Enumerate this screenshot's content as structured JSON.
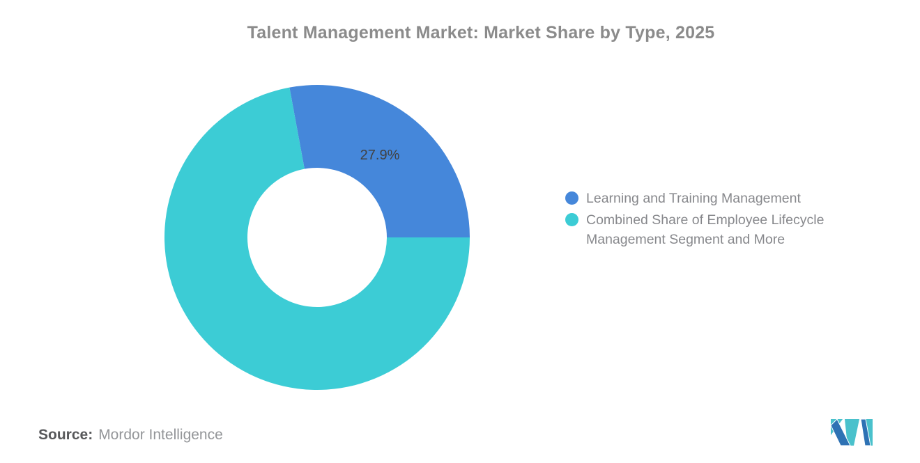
{
  "title": "Talent Management Market: Market Share by Type, 2025",
  "chart_data": {
    "type": "pie",
    "subtype": "donut",
    "title": "Talent Management Market: Market Share by Type, 2025",
    "labels": [
      "Learning and Training Management",
      "Combined Share of Employee Lifecycle Management Segment and More"
    ],
    "values": [
      27.9,
      72.1
    ],
    "colors": [
      "#4587DA",
      "#3CCCD5"
    ],
    "data_labels": [
      "27.9%",
      ""
    ],
    "visible_data_label": "27.9%",
    "legend_position": "right",
    "start_angle_deg": -10.44,
    "outer_radius": 219,
    "inner_radius": 100
  },
  "legend": {
    "items": [
      {
        "label": "Learning and Training Management",
        "color": "#4587DA"
      },
      {
        "label": "Combined Share of Employee Lifecycle Management Segment and More",
        "color": "#3CCCD5"
      }
    ]
  },
  "source": {
    "prefix": "Source:",
    "text": "Mordor Intelligence"
  },
  "logo": {
    "name": "mordor-intelligence-logo",
    "teal": "#4AC1CC",
    "blue": "#2E72B4"
  }
}
